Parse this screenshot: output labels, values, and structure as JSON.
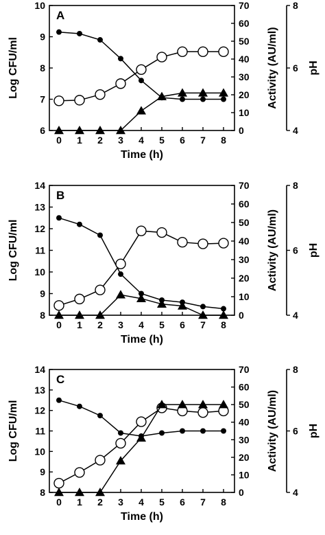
{
  "chart_data": [
    {
      "type": "line",
      "panel_label": "A",
      "xlabel": "Time (h)",
      "ylabel_left": "Log CFU/ml",
      "ylabel_right1": "Activity (AU/ml)",
      "ylabel_right2": "pH",
      "x": [
        0,
        1,
        2,
        3,
        4,
        5,
        6,
        7,
        8
      ],
      "xlim": [
        0,
        8
      ],
      "y_left_lim": [
        6,
        10
      ],
      "y_left_ticks": [
        6,
        7,
        8,
        9,
        10
      ],
      "y_act_lim": [
        0,
        70
      ],
      "y_act_ticks": [
        0,
        10,
        20,
        30,
        40,
        50,
        60,
        70
      ],
      "y_ph_lim": [
        4,
        8
      ],
      "y_ph_ticks": [
        4,
        6,
        8
      ],
      "series": [
        {
          "marker": "filled-circle",
          "axis": "left",
          "values": [
            9.15,
            9.1,
            8.9,
            8.3,
            7.6,
            7.05,
            7.0,
            7.0,
            7.0
          ]
        },
        {
          "marker": "open-circle",
          "axis": "ph",
          "values": [
            4.95,
            4.97,
            5.15,
            5.5,
            5.95,
            6.35,
            6.52,
            6.52,
            6.52
          ]
        },
        {
          "marker": "filled-triangle",
          "axis": "activity",
          "values": [
            0,
            0,
            0,
            0,
            11,
            19,
            21,
            21,
            21
          ]
        }
      ]
    },
    {
      "type": "line",
      "panel_label": "B",
      "xlabel": "Time (h)",
      "ylabel_left": "Log CFU/ml",
      "ylabel_right1": "Activity (AU/ml)",
      "ylabel_right2": "pH",
      "x": [
        0,
        1,
        2,
        3,
        4,
        5,
        6,
        7,
        8
      ],
      "xlim": [
        0,
        8
      ],
      "y_left_lim": [
        8,
        14
      ],
      "y_left_ticks": [
        8,
        9,
        10,
        11,
        12,
        13,
        14
      ],
      "y_act_lim": [
        0,
        70
      ],
      "y_act_ticks": [
        0,
        10,
        20,
        30,
        40,
        50,
        60,
        70
      ],
      "y_ph_lim": [
        4,
        8
      ],
      "y_ph_ticks": [
        4,
        6,
        8
      ],
      "series": [
        {
          "marker": "filled-circle",
          "axis": "left",
          "values": [
            12.5,
            12.2,
            11.7,
            9.9,
            9.0,
            8.7,
            8.6,
            8.4,
            8.3
          ]
        },
        {
          "marker": "open-circle",
          "axis": "ph",
          "values": [
            4.3,
            4.5,
            4.78,
            5.58,
            6.6,
            6.55,
            6.25,
            6.2,
            6.22
          ]
        },
        {
          "marker": "filled-triangle",
          "axis": "activity",
          "values": [
            0,
            0,
            0,
            11,
            9,
            6,
            5,
            0,
            0
          ]
        }
      ]
    },
    {
      "type": "line",
      "panel_label": "C",
      "xlabel": "Time (h)",
      "ylabel_left": "Log CFU/ml",
      "ylabel_right1": "Activity (AU/ml)",
      "ylabel_right2": "pH",
      "x": [
        0,
        1,
        2,
        3,
        4,
        5,
        6,
        7,
        8
      ],
      "xlim": [
        0,
        8
      ],
      "y_left_lim": [
        8,
        14
      ],
      "y_left_ticks": [
        8,
        9,
        10,
        11,
        12,
        13,
        14
      ],
      "y_act_lim": [
        0,
        70
      ],
      "y_act_ticks": [
        0,
        10,
        20,
        30,
        40,
        50,
        60,
        70
      ],
      "y_ph_lim": [
        4,
        8
      ],
      "y_ph_ticks": [
        4,
        6,
        8
      ],
      "series": [
        {
          "marker": "filled-circle",
          "axis": "left",
          "values": [
            12.5,
            12.2,
            11.75,
            10.9,
            10.75,
            10.9,
            11.0,
            11.0,
            11.0
          ]
        },
        {
          "marker": "open-circle",
          "axis": "ph",
          "values": [
            4.3,
            4.65,
            5.05,
            5.6,
            6.3,
            6.75,
            6.65,
            6.6,
            6.65
          ]
        },
        {
          "marker": "filled-triangle",
          "axis": "activity",
          "values": [
            0,
            0,
            0,
            18,
            31,
            50,
            50,
            50,
            50
          ]
        }
      ]
    }
  ]
}
